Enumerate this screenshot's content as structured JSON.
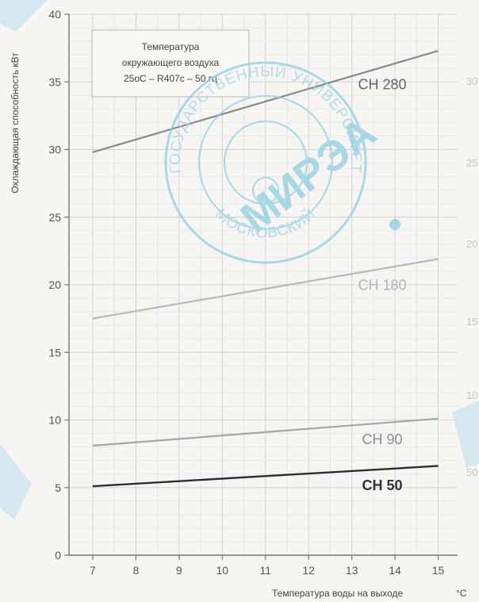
{
  "chart_data": {
    "type": "line",
    "ylabel": "Охлаждающая способность кВт",
    "xlabel": "Температура воды на выходе",
    "xlabel_unit": "°C",
    "x": [
      7,
      15
    ],
    "xlim": [
      7,
      15
    ],
    "ylim": [
      0,
      40
    ],
    "xticks": [
      "7",
      "8",
      "9",
      "10",
      "11",
      "12",
      "13",
      "14",
      "15"
    ],
    "yticks": [
      "0",
      "5",
      "10",
      "15",
      "20",
      "25",
      "30",
      "35",
      "40"
    ],
    "right_ticks": [
      "30",
      "25",
      "20",
      "15",
      "10",
      "50"
    ],
    "legend_box": {
      "line1": "Температура",
      "line2": "окружающего воздуха",
      "line3": "25оС – R407c – 50 гц"
    },
    "series": [
      {
        "name": "CH 280",
        "values": [
          29.8,
          37.3
        ],
        "color": "#8a8a8a",
        "label_color": "#666666"
      },
      {
        "name": "CH 180",
        "values": [
          17.5,
          21.9
        ],
        "color": "#b9b9b9",
        "label_color": "#b4b4b4"
      },
      {
        "name": "CH 90",
        "values": [
          8.1,
          10.1
        ],
        "color": "#a6a6a6",
        "label_color": "#8e8e8e"
      },
      {
        "name": "CH 50",
        "values": [
          5.1,
          6.6
        ],
        "color": "#2e2e2e",
        "label_color": "#333333"
      }
    ],
    "grid": true,
    "colors": {
      "axis": "#777777",
      "grid": "#dcdcdc"
    }
  },
  "stamp": {
    "ring_text": "ГОСУДАРСТВЕННЫЙ УНИВЕРСИТЕТ",
    "bottom_text": "МОСКОВСКИЙ",
    "center_text": "МИРЭА",
    "color": "#8fcde2"
  }
}
